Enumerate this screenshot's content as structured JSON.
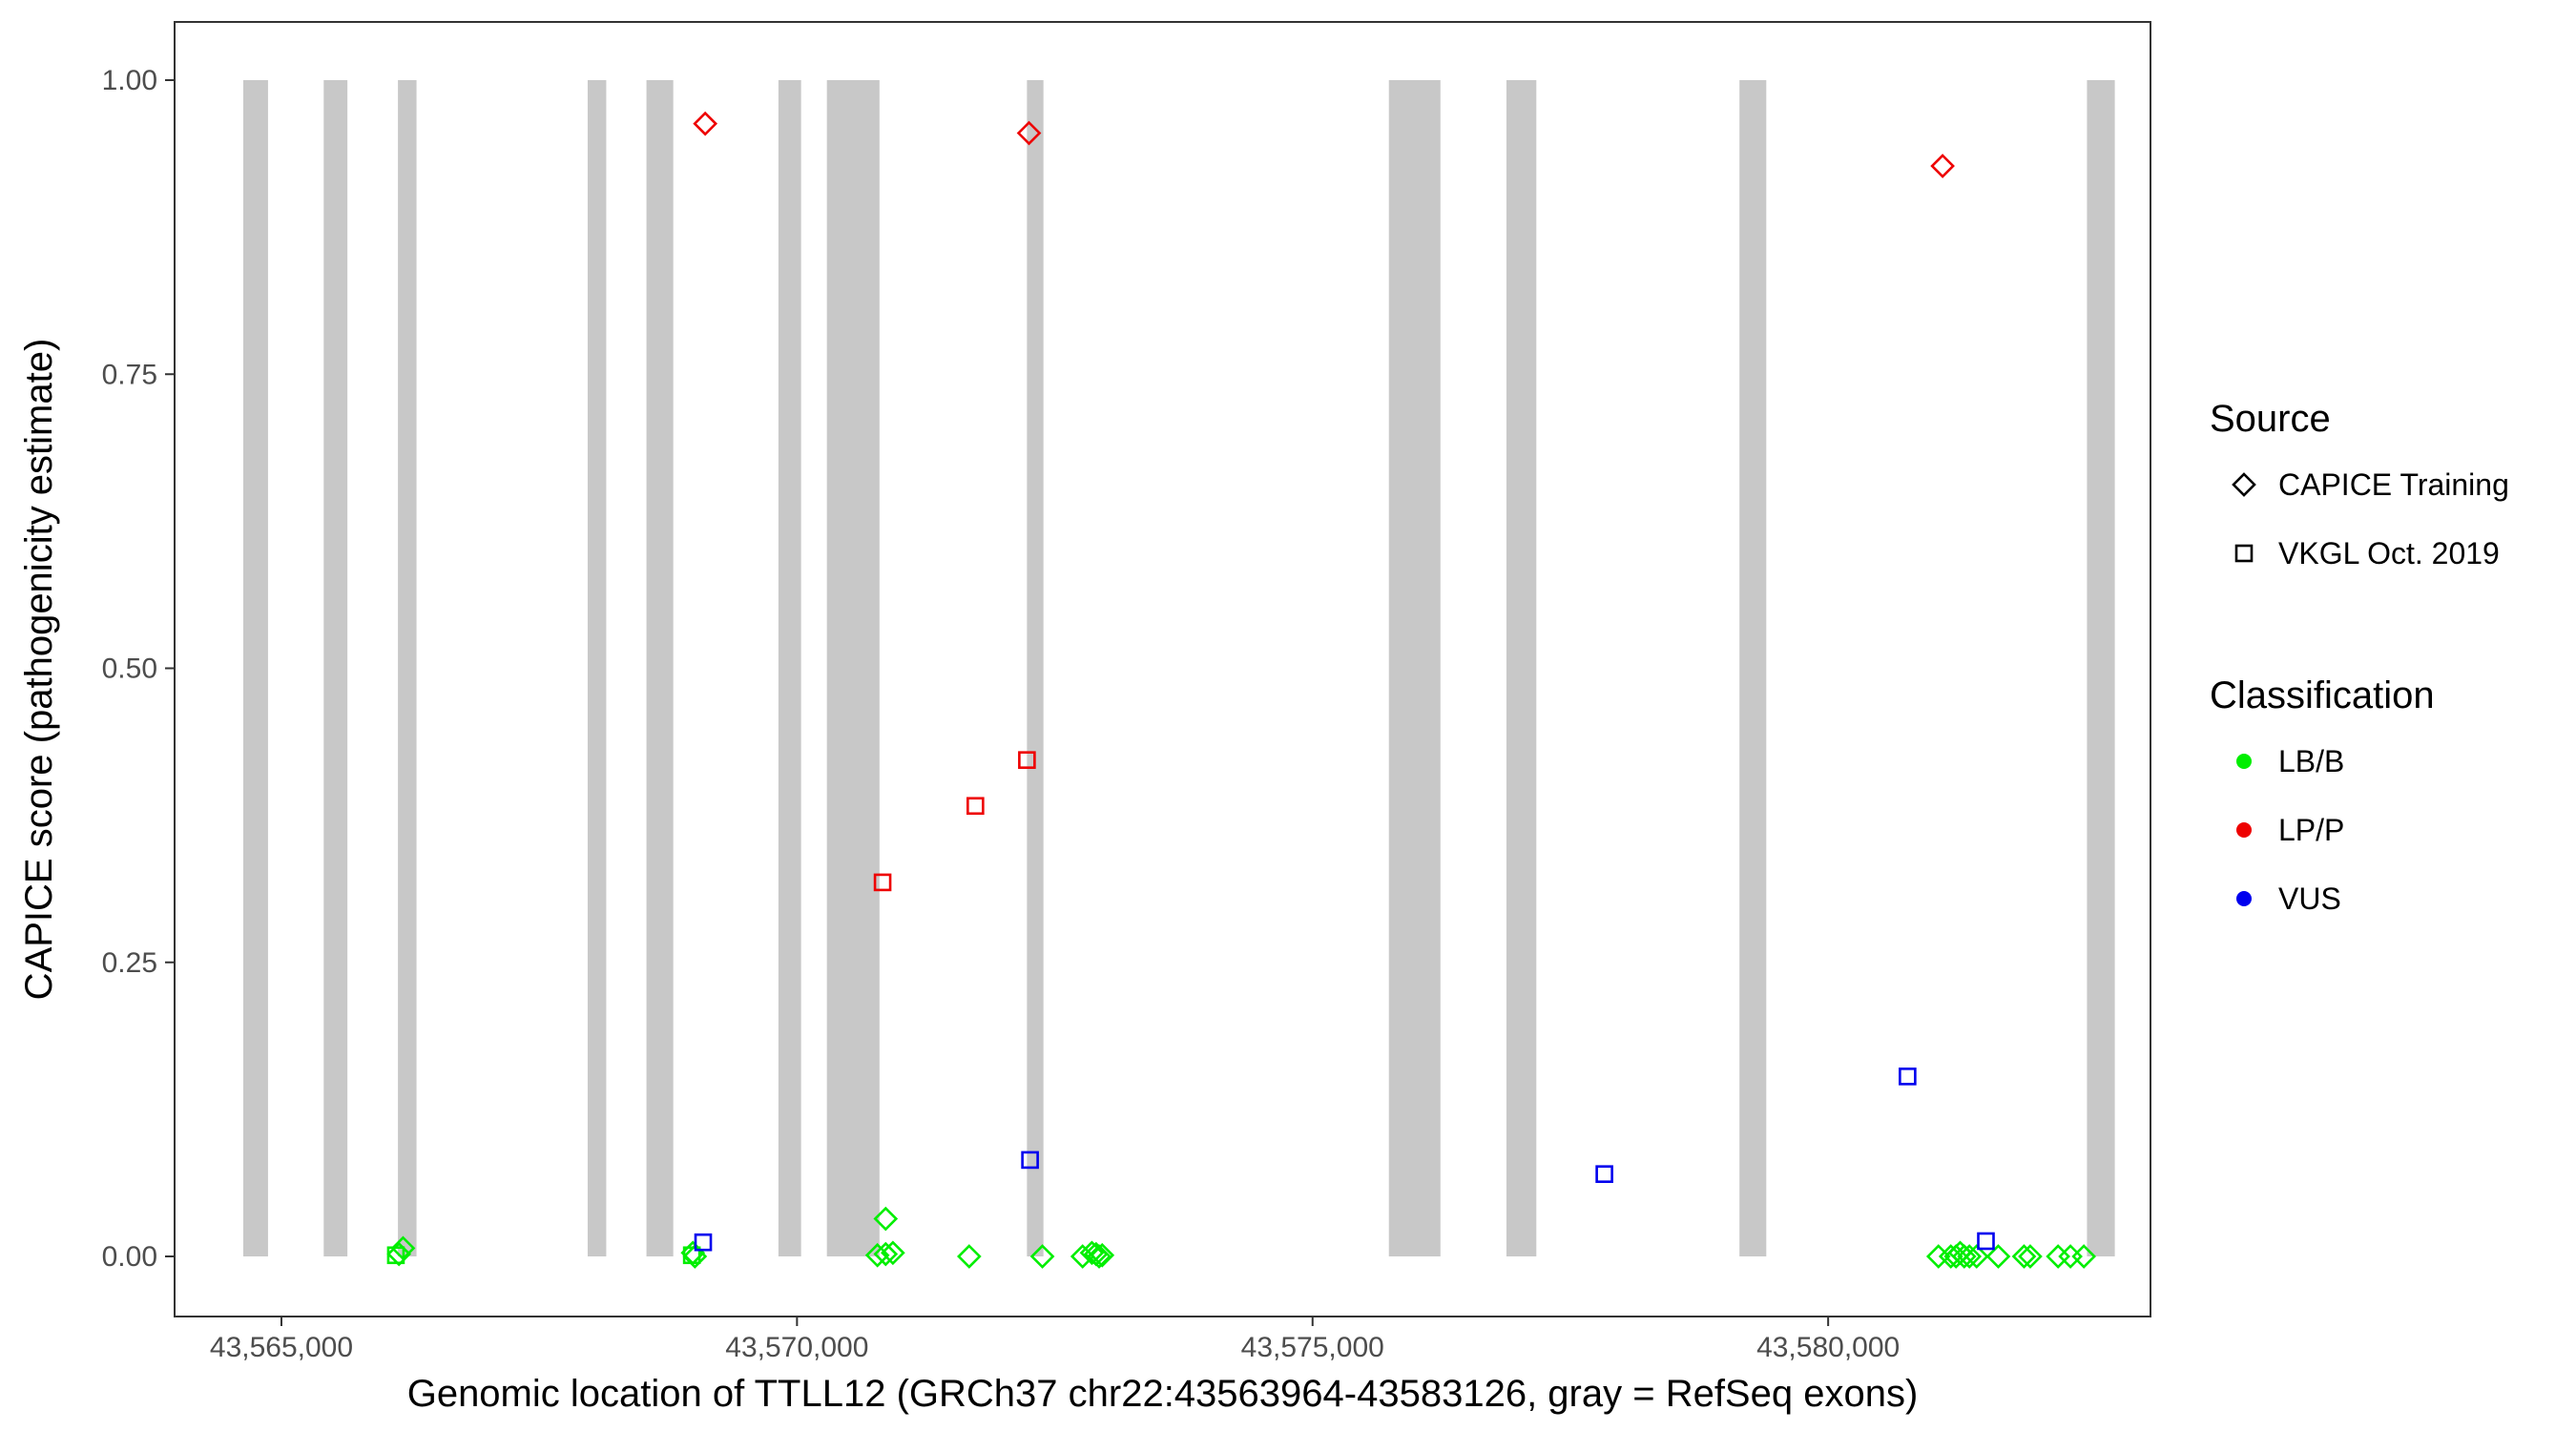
{
  "chart_data": {
    "type": "scatter",
    "xlabel": "Genomic location of TTLL12 (GRCh37 chr22:43563964-43583126, gray = RefSeq exons)",
    "ylabel": "CAPICE score (pathogenicity estimate)",
    "xlim": [
      43563964,
      43583126
    ],
    "ylim": [
      -0.047,
      1.05
    ],
    "x_ticks": [
      43565000,
      43570000,
      43575000,
      43580000
    ],
    "x_tick_labels": [
      "43,565,000",
      "43,570,000",
      "43,575,000",
      "43,580,000"
    ],
    "y_ticks": [
      0.0,
      0.25,
      0.5,
      0.75,
      1.0
    ],
    "y_tick_labels": [
      "0.00",
      "0.25",
      "0.50",
      "0.75",
      "1.00"
    ],
    "grid": false,
    "exons": [
      [
        43564630,
        43564870
      ],
      [
        43565410,
        43565640
      ],
      [
        43566130,
        43566310
      ],
      [
        43567970,
        43568150
      ],
      [
        43568540,
        43568800
      ],
      [
        43569820,
        43570040
      ],
      [
        43570290,
        43570800
      ],
      [
        43572230,
        43572390
      ],
      [
        43575740,
        43576240
      ],
      [
        43576880,
        43577170
      ],
      [
        43579140,
        43579400
      ],
      [
        43582510,
        43582780
      ]
    ],
    "legend": {
      "position": "right",
      "source_title": "Source",
      "source_entries": [
        {
          "label": "CAPICE Training",
          "shape": "diamond"
        },
        {
          "label": "VKGL Oct. 2019",
          "shape": "square"
        }
      ],
      "class_title": "Classification",
      "class_entries": [
        {
          "label": "LB/B",
          "color": "#00ee00"
        },
        {
          "label": "LP/P",
          "color": "#ee0000"
        },
        {
          "label": "VUS",
          "color": "#0000ee"
        }
      ]
    },
    "series": [
      {
        "source": "CAPICE Training",
        "classification": "LB/B",
        "points": [
          [
            43566180,
            0.007
          ],
          [
            43566140,
            0.002
          ],
          [
            43568990,
            0.003
          ],
          [
            43569010,
            0.0
          ],
          [
            43570860,
            0.032
          ],
          [
            43570780,
            0.001
          ],
          [
            43570860,
            0.002
          ],
          [
            43570930,
            0.003
          ],
          [
            43571670,
            0.0
          ],
          [
            43572380,
            0.0
          ],
          [
            43572770,
            0.0
          ],
          [
            43572860,
            0.003
          ],
          [
            43572900,
            0.002
          ],
          [
            43572930,
            0.0
          ],
          [
            43572960,
            0.001
          ],
          [
            43581070,
            0.0
          ],
          [
            43581190,
            0.0
          ],
          [
            43581240,
            0.0
          ],
          [
            43581280,
            0.003
          ],
          [
            43581320,
            0.0
          ],
          [
            43581370,
            0.0
          ],
          [
            43581440,
            0.0
          ],
          [
            43581650,
            0.0
          ],
          [
            43581900,
            0.0
          ],
          [
            43581960,
            0.0
          ],
          [
            43582230,
            0.0
          ],
          [
            43582350,
            0.0
          ],
          [
            43582480,
            0.0
          ]
        ]
      },
      {
        "source": "CAPICE Training",
        "classification": "LP/P",
        "points": [
          [
            43569110,
            0.963
          ],
          [
            43572250,
            0.955
          ],
          [
            43581110,
            0.927
          ]
        ]
      },
      {
        "source": "VKGL Oct. 2019",
        "classification": "LB/B",
        "points": [
          [
            43566110,
            0.001
          ],
          [
            43568980,
            0.001
          ]
        ]
      },
      {
        "source": "VKGL Oct. 2019",
        "classification": "LP/P",
        "points": [
          [
            43570830,
            0.318
          ],
          [
            43571730,
            0.383
          ],
          [
            43572230,
            0.422
          ]
        ]
      },
      {
        "source": "VKGL Oct. 2019",
        "classification": "VUS",
        "points": [
          [
            43569090,
            0.012
          ],
          [
            43572260,
            0.082
          ],
          [
            43577830,
            0.07
          ],
          [
            43580770,
            0.153
          ],
          [
            43581530,
            0.013
          ]
        ]
      }
    ]
  }
}
